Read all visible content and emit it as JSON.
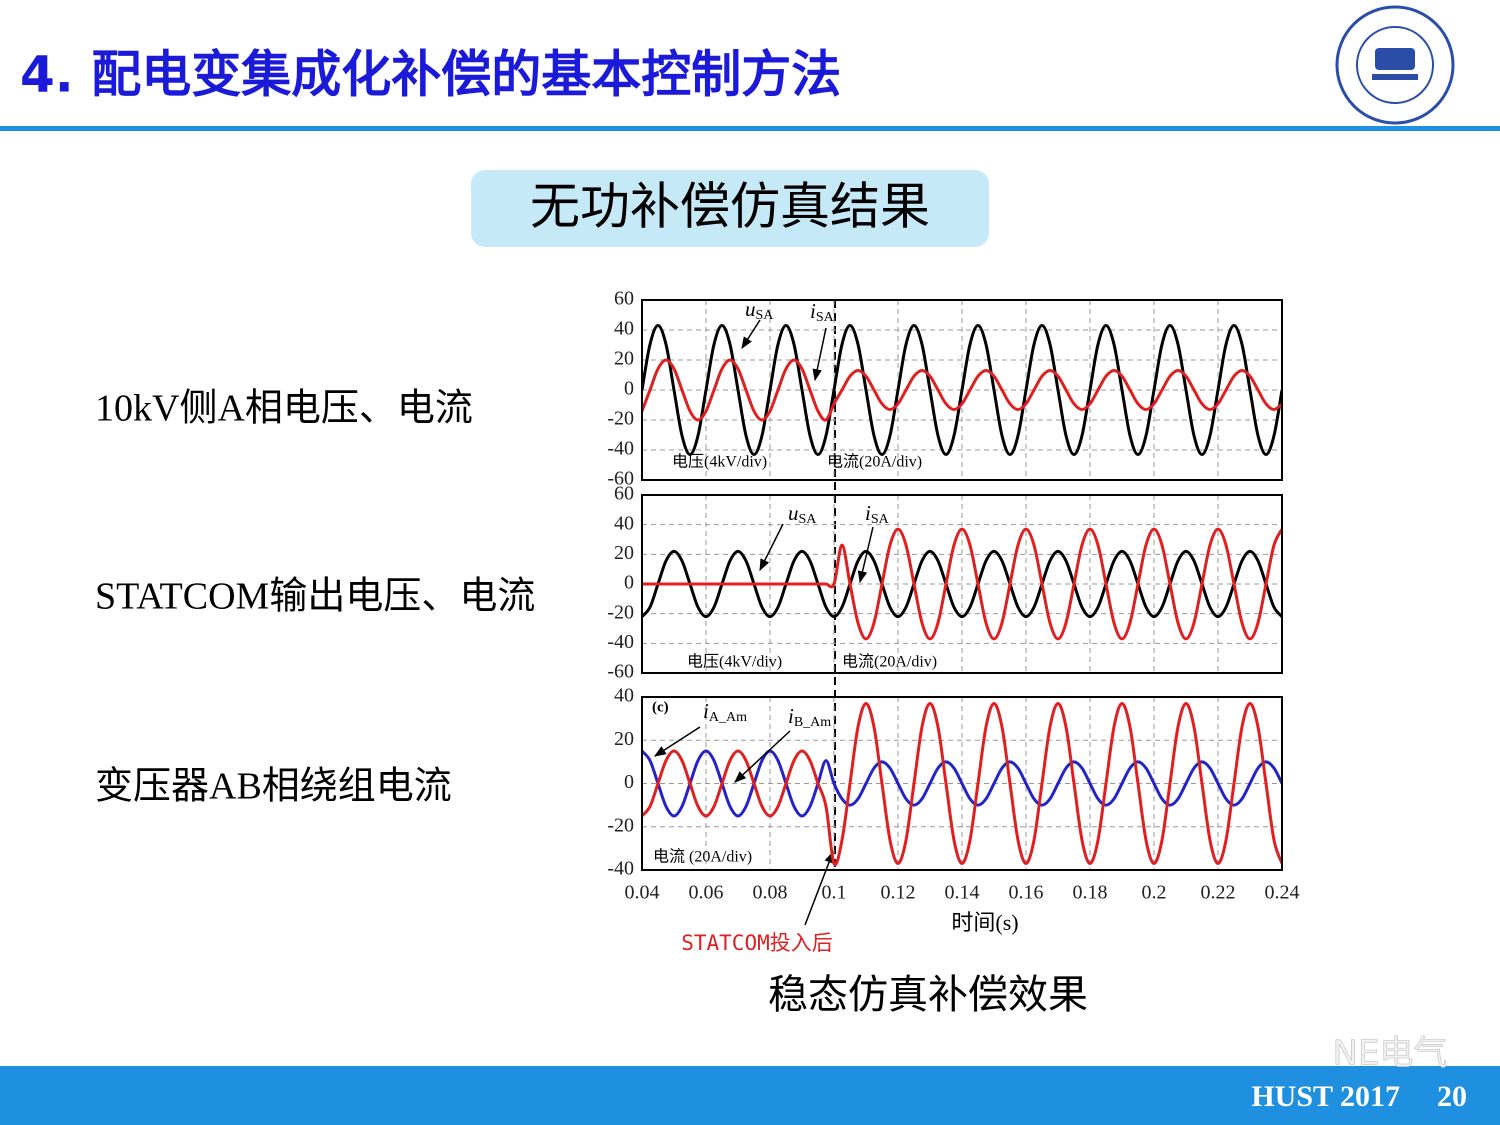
{
  "header": {
    "title": "4. 配电变集成化补偿的基本控制方法"
  },
  "subtitle": "无功补偿仿真结果",
  "row_labels": [
    "10kV侧A相电压、电流",
    "STATCOM输出电压、电流",
    "变压器AB相绕组电流"
  ],
  "caption": "稳态仿真补偿效果",
  "annotation": "STATCOM投入后",
  "footer": {
    "brand": "NE电气",
    "left": "HUST 2017",
    "page": "20"
  },
  "chart_data": [
    {
      "type": "line",
      "grid": true,
      "xlim": [
        0.04,
        0.24
      ],
      "xticks": [
        0.04,
        0.06,
        0.08,
        0.1,
        0.12,
        0.14,
        0.16,
        0.18,
        0.2,
        0.22,
        0.24
      ],
      "ylim": [
        -60,
        60
      ],
      "yticks": [
        -60,
        -40,
        -20,
        0,
        20,
        40,
        60
      ],
      "notes": [
        "电压(4kV/div)",
        "电流(20A/div)"
      ],
      "labels": [
        {
          "symbol": "u",
          "subscript": "SA"
        },
        {
          "symbol": "i",
          "subscript": "SA"
        }
      ],
      "x": [
        0.04,
        0.0425,
        0.045,
        0.0475,
        0.05,
        0.0525,
        0.055,
        0.0575,
        0.06,
        0.0625,
        0.065,
        0.0675,
        0.07,
        0.0725,
        0.075,
        0.0775,
        0.08,
        0.0825,
        0.085,
        0.0875,
        0.09,
        0.0925,
        0.095,
        0.0975,
        0.1,
        0.1025,
        0.105,
        0.1075,
        0.11,
        0.1125,
        0.115,
        0.1175,
        0.12,
        0.1225,
        0.125,
        0.1275,
        0.13,
        0.1325,
        0.135,
        0.1375,
        0.14,
        0.1425,
        0.145,
        0.1475,
        0.15,
        0.1525,
        0.155,
        0.1575,
        0.16,
        0.1625,
        0.165,
        0.1675,
        0.17,
        0.1725,
        0.175,
        0.1775,
        0.18,
        0.1825,
        0.185,
        0.1875,
        0.19,
        0.1925,
        0.195,
        0.1975,
        0.2,
        0.2025,
        0.205,
        0.2075,
        0.21,
        0.2125,
        0.215,
        0.2175,
        0.22,
        0.2225,
        0.225,
        0.2275,
        0.23,
        0.2325,
        0.235,
        0.2375,
        0.24
      ],
      "series": [
        {
          "color": "#000000",
          "values": [
            0,
            30.4,
            43,
            30.4,
            0,
            -30.4,
            -43,
            -30.4,
            0,
            30.4,
            43,
            30.4,
            0,
            -30.4,
            -43,
            -30.4,
            0,
            30.4,
            43,
            30.4,
            0,
            -30.4,
            -43,
            -30.4,
            0,
            30.4,
            43,
            30.4,
            0,
            -30.4,
            -43,
            -30.4,
            0,
            30.4,
            43,
            30.4,
            0,
            -30.4,
            -43,
            -30.4,
            0,
            30.4,
            43,
            30.4,
            0,
            -30.4,
            -43,
            -30.4,
            0,
            30.4,
            43,
            30.4,
            0,
            -30.4,
            -43,
            -30.4,
            0,
            30.4,
            43,
            30.4,
            0,
            -30.4,
            -43,
            -30.4,
            0,
            30.4,
            43,
            30.4,
            0,
            -30.4,
            -43,
            -30.4,
            0,
            30.4,
            43,
            30.4,
            0,
            -30.4,
            -43,
            -30.4,
            0
          ]
        },
        {
          "color": "#e02020",
          "values": [
            -14.1,
            0,
            14.1,
            20,
            14.1,
            0,
            -14.1,
            -20,
            -14.1,
            0,
            14.1,
            20,
            14.1,
            0,
            -14.1,
            -20,
            -14.1,
            0,
            14.1,
            20,
            14.1,
            0,
            -14.1,
            -20,
            -9.2,
            0,
            9.2,
            13,
            9.2,
            0,
            -9.2,
            -13,
            -9.2,
            0,
            9.2,
            13,
            9.2,
            0,
            -9.2,
            -13,
            -9.2,
            0,
            9.2,
            13,
            9.2,
            0,
            -9.2,
            -13,
            -9.2,
            0,
            9.2,
            13,
            9.2,
            0,
            -9.2,
            -13,
            -9.2,
            0,
            9.2,
            13,
            9.2,
            0,
            -9.2,
            -13,
            -9.2,
            0,
            9.2,
            13,
            9.2,
            0,
            -9.2,
            -13,
            -9.2,
            0,
            9.2,
            13,
            9.2,
            0,
            -9.2,
            -13,
            -9.2
          ]
        }
      ]
    },
    {
      "type": "line",
      "grid": true,
      "xlim": [
        0.04,
        0.24
      ],
      "xticks": [
        0.04,
        0.06,
        0.08,
        0.1,
        0.12,
        0.14,
        0.16,
        0.18,
        0.2,
        0.22,
        0.24
      ],
      "ylim": [
        -60,
        60
      ],
      "yticks": [
        -60,
        -40,
        -20,
        0,
        20,
        40,
        60
      ],
      "notes": [
        "电压(4kV/div)",
        "电流(20A/div)"
      ],
      "labels": [
        {
          "symbol": "u",
          "subscript": "SA"
        },
        {
          "symbol": "i",
          "subscript": "SA"
        }
      ],
      "x": [
        0.04,
        0.0425,
        0.045,
        0.0475,
        0.05,
        0.0525,
        0.055,
        0.0575,
        0.06,
        0.0625,
        0.065,
        0.0675,
        0.07,
        0.0725,
        0.075,
        0.0775,
        0.08,
        0.0825,
        0.085,
        0.0875,
        0.09,
        0.0925,
        0.095,
        0.0975,
        0.1,
        0.1025,
        0.105,
        0.1075,
        0.11,
        0.1125,
        0.115,
        0.1175,
        0.12,
        0.1225,
        0.125,
        0.1275,
        0.13,
        0.1325,
        0.135,
        0.1375,
        0.14,
        0.1425,
        0.145,
        0.1475,
        0.15,
        0.1525,
        0.155,
        0.1575,
        0.16,
        0.1625,
        0.165,
        0.1675,
        0.17,
        0.1725,
        0.175,
        0.1775,
        0.18,
        0.1825,
        0.185,
        0.1875,
        0.19,
        0.1925,
        0.195,
        0.1975,
        0.2,
        0.2025,
        0.205,
        0.2075,
        0.21,
        0.2125,
        0.215,
        0.2175,
        0.22,
        0.2225,
        0.225,
        0.2275,
        0.23,
        0.2325,
        0.235,
        0.2375,
        0.24
      ],
      "series": [
        {
          "color": "#000000",
          "values": [
            -22,
            -15.6,
            0,
            15.6,
            22,
            15.6,
            0,
            -15.6,
            -22,
            -15.6,
            0,
            15.6,
            22,
            15.6,
            0,
            -15.6,
            -22,
            -15.6,
            0,
            15.6,
            22,
            15.6,
            0,
            -15.6,
            -22,
            -15.6,
            0,
            15.6,
            22,
            15.6,
            0,
            -15.6,
            -22,
            -15.6,
            0,
            15.6,
            22,
            15.6,
            0,
            -15.6,
            -22,
            -15.6,
            0,
            15.6,
            22,
            15.6,
            0,
            -15.6,
            -22,
            -15.6,
            0,
            15.6,
            22,
            15.6,
            0,
            -15.6,
            -22,
            -15.6,
            0,
            15.6,
            22,
            15.6,
            0,
            -15.6,
            -22,
            -15.6,
            0,
            15.6,
            22,
            15.6,
            0,
            -15.6,
            -22,
            -15.6,
            0,
            15.6,
            22,
            15.6,
            0,
            -15.6,
            -22
          ]
        },
        {
          "color": "#e02020",
          "values": [
            0,
            0,
            0,
            0,
            0,
            0,
            0,
            0,
            0,
            0,
            0,
            0,
            0,
            0,
            0,
            0,
            0,
            0,
            0,
            0,
            0,
            0,
            0,
            0,
            0,
            26.2,
            0,
            -26.2,
            -37,
            -26.2,
            0,
            26.2,
            37,
            26.2,
            0,
            -26.2,
            -37,
            -26.2,
            0,
            26.2,
            37,
            26.2,
            0,
            -26.2,
            -37,
            -26.2,
            0,
            26.2,
            37,
            26.2,
            0,
            -26.2,
            -37,
            -26.2,
            0,
            26.2,
            37,
            26.2,
            0,
            -26.2,
            -37,
            -26.2,
            0,
            26.2,
            37,
            26.2,
            0,
            -26.2,
            -37,
            -26.2,
            0,
            26.2,
            37,
            26.2,
            0,
            -26.2,
            -37,
            -26.2,
            0,
            26.2,
            37
          ]
        }
      ]
    },
    {
      "type": "line",
      "grid": true,
      "xlim": [
        0.04,
        0.24
      ],
      "xticks": [
        0.04,
        0.06,
        0.08,
        0.1,
        0.12,
        0.14,
        0.16,
        0.18,
        0.2,
        0.22,
        0.24
      ],
      "ylim": [
        -40,
        40
      ],
      "yticks": [
        -40,
        -20,
        0,
        20,
        40
      ],
      "xlabel": "时间(s)",
      "panel_label": "(c)",
      "notes": [
        "电流 (20A/div)"
      ],
      "labels": [
        {
          "symbol": "i",
          "subscript": "A_Am"
        },
        {
          "symbol": "i",
          "subscript": "B_Am"
        }
      ],
      "x": [
        0.04,
        0.0425,
        0.045,
        0.0475,
        0.05,
        0.0525,
        0.055,
        0.0575,
        0.06,
        0.0625,
        0.065,
        0.0675,
        0.07,
        0.0725,
        0.075,
        0.0775,
        0.08,
        0.0825,
        0.085,
        0.0875,
        0.09,
        0.0925,
        0.095,
        0.0975,
        0.1,
        0.1025,
        0.105,
        0.1075,
        0.11,
        0.1125,
        0.115,
        0.1175,
        0.12,
        0.1225,
        0.125,
        0.1275,
        0.13,
        0.1325,
        0.135,
        0.1375,
        0.14,
        0.1425,
        0.145,
        0.1475,
        0.15,
        0.1525,
        0.155,
        0.1575,
        0.16,
        0.1625,
        0.165,
        0.1675,
        0.17,
        0.1725,
        0.175,
        0.1775,
        0.18,
        0.1825,
        0.185,
        0.1875,
        0.19,
        0.1925,
        0.195,
        0.1975,
        0.2,
        0.2025,
        0.205,
        0.2075,
        0.21,
        0.2125,
        0.215,
        0.2175,
        0.22,
        0.2225,
        0.225,
        0.2275,
        0.23,
        0.2325,
        0.235,
        0.2375,
        0.24
      ],
      "series": [
        {
          "color": "#2323c8",
          "values": [
            15,
            10.6,
            0,
            -10.6,
            -15,
            -10.6,
            0,
            10.6,
            15,
            10.6,
            0,
            -10.6,
            -15,
            -10.6,
            0,
            10.6,
            15,
            10.6,
            0,
            -10.6,
            -15,
            -10.6,
            0,
            10.6,
            0,
            -7.1,
            -10,
            -7.1,
            0,
            7.1,
            10,
            7.1,
            0,
            -7.1,
            -10,
            -7.1,
            0,
            7.1,
            10,
            7.1,
            0,
            -7.1,
            -10,
            -7.1,
            0,
            7.1,
            10,
            7.1,
            0,
            -7.1,
            -10,
            -7.1,
            0,
            7.1,
            10,
            7.1,
            0,
            -7.1,
            -10,
            -7.1,
            0,
            7.1,
            10,
            7.1,
            0,
            -7.1,
            -10,
            -7.1,
            0,
            7.1,
            10,
            7.1,
            0,
            -7.1,
            -10,
            -7.1,
            0,
            7.1,
            10,
            7.1,
            0
          ]
        },
        {
          "color": "#e02020",
          "values": [
            -15,
            -10.6,
            0,
            10.6,
            15,
            10.6,
            0,
            -10.6,
            -15,
            -10.6,
            0,
            10.6,
            15,
            10.6,
            0,
            -10.6,
            -15,
            -10.6,
            0,
            10.6,
            15,
            10.6,
            0,
            -10.6,
            -37,
            -26.2,
            0,
            26.2,
            37,
            26.2,
            0,
            -26.2,
            -37,
            -26.2,
            0,
            26.2,
            37,
            26.2,
            0,
            -26.2,
            -37,
            -26.2,
            0,
            26.2,
            37,
            26.2,
            0,
            -26.2,
            -37,
            -26.2,
            0,
            26.2,
            37,
            26.2,
            0,
            -26.2,
            -37,
            -26.2,
            0,
            26.2,
            37,
            26.2,
            0,
            -26.2,
            -37,
            -26.2,
            0,
            26.2,
            37,
            26.2,
            0,
            -26.2,
            -37,
            -26.2,
            0,
            26.2,
            37,
            26.2,
            0,
            -26.2,
            -37
          ]
        }
      ]
    }
  ]
}
